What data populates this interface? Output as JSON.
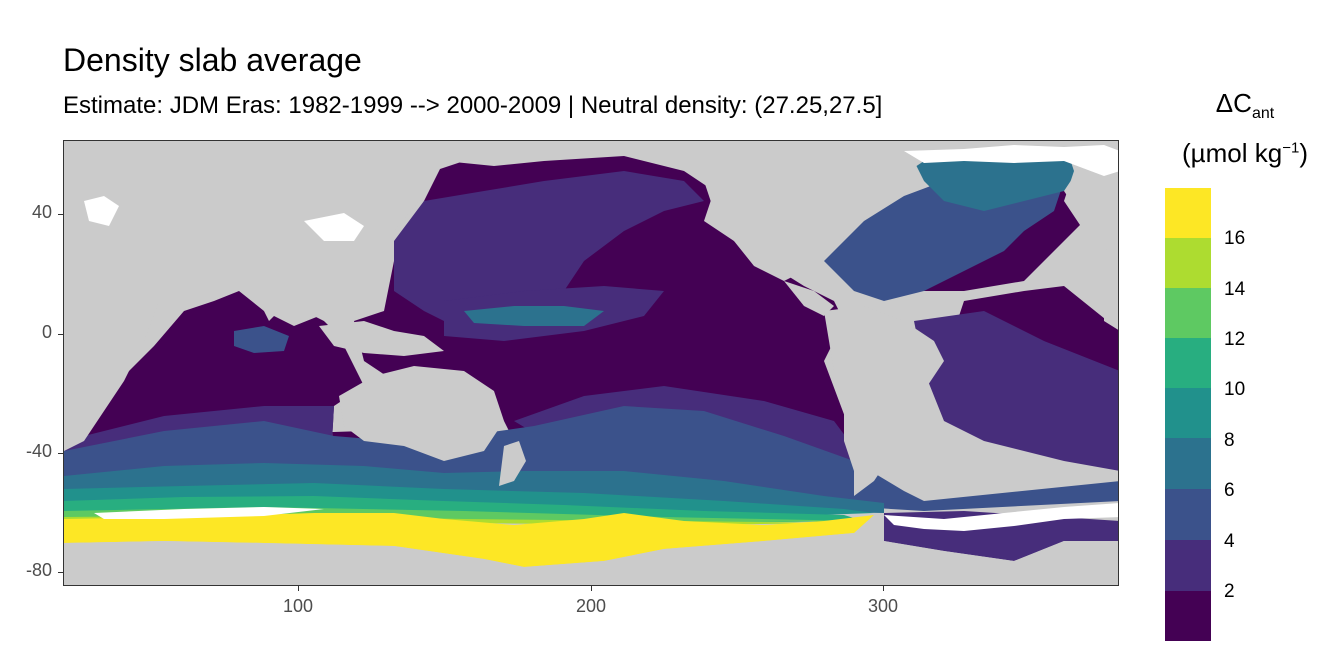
{
  "title": "Density slab average",
  "subtitle": "Estimate: JDM Eras: 1982-1999 --> 2000-2009 | Neutral density: (27.25,27.5]",
  "axes": {
    "x_range": [
      20,
      380
    ],
    "y_range": [
      -85,
      65
    ],
    "x_ticks": [
      "100",
      "200",
      "300"
    ],
    "y_ticks": [
      "40",
      "0",
      "-40",
      "-80"
    ],
    "x_tick_values": [
      100,
      200,
      300
    ],
    "y_tick_values": [
      40,
      0,
      -40,
      -80
    ]
  },
  "legend": {
    "title_main": "ΔC",
    "title_sub": "ant",
    "unit_open": "(µmol kg",
    "unit_sup": "−1",
    "unit_close": ")",
    "labels": [
      "16",
      "14",
      "12",
      "10",
      "8",
      "6",
      "4",
      "2"
    ],
    "colors_top_to_bottom": [
      "#fde725",
      "#addc30",
      "#5ec962",
      "#28ae80",
      "#21918c",
      "#2c728e",
      "#3b528b",
      "#472d7b",
      "#440154"
    ]
  },
  "colors": {
    "land": "#cbcbcb",
    "no_data": "#ffffff"
  }
}
